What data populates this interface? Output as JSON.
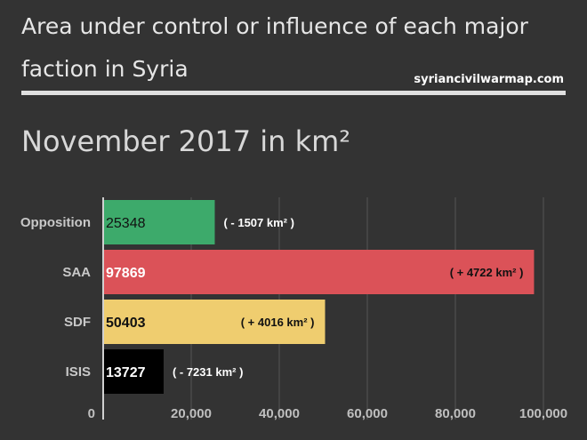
{
  "header": {
    "title": "Area under control or influence of each major faction in Syria",
    "source": "syriancivilwarmap.com",
    "subtitle": "November 2017 in km²"
  },
  "chart_data": {
    "type": "bar",
    "orientation": "horizontal",
    "categories": [
      "Opposition",
      "SAA",
      "SDF",
      "ISIS"
    ],
    "values": [
      25348,
      97869,
      50403,
      13727
    ],
    "changes": [
      "( - 1507 km² )",
      "( + 4722 km² )",
      "( + 4016 km² )",
      "( - 7231 km² )"
    ],
    "colors": [
      "#3daa6b",
      "#db5258",
      "#efcd6f",
      "#000000"
    ],
    "value_label_colors": [
      "#111111",
      "#ffffff",
      "#111111",
      "#ffffff"
    ],
    "change_label_colors": [
      "#ffffff",
      "#111111",
      "#111111",
      "#ffffff"
    ],
    "change_inside": [
      false,
      true,
      true,
      false
    ],
    "xlim": [
      0,
      100000
    ],
    "xticks": [
      0,
      20000,
      40000,
      60000,
      80000,
      100000
    ],
    "xtick_labels": [
      "0",
      "20,000",
      "40,000",
      "60,000",
      "80,000",
      "100,000"
    ],
    "grid": true,
    "legend": "none"
  }
}
